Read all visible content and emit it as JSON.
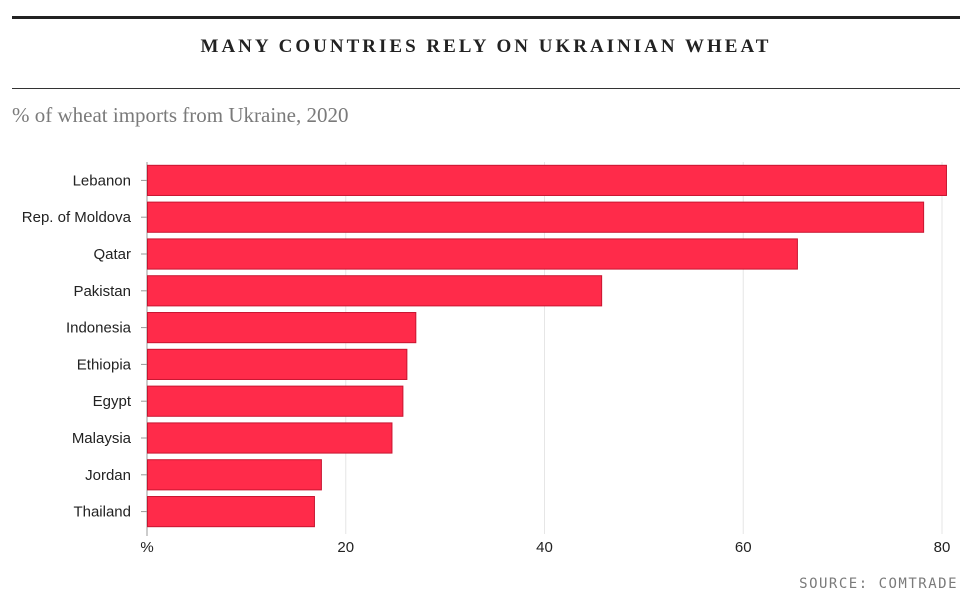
{
  "header": {
    "title": "MANY COUNTRIES RELY ON UKRAINIAN WHEAT",
    "subtitle": "% of wheat imports from Ukraine, 2020"
  },
  "footer": {
    "source": "SOURCE: COMTRADE"
  },
  "colors": {
    "bar": "#ff2b4a",
    "bar_edge": "#c81530",
    "grid": "#e6e6e6",
    "axis": "#999999"
  },
  "chart_data": {
    "type": "bar",
    "orientation": "horizontal",
    "title": "MANY COUNTRIES RELY ON UKRAINIAN WHEAT",
    "subtitle": "% of wheat imports from Ukraine, 2020",
    "categories": [
      "Lebanon",
      "Rep. of Moldova",
      "Qatar",
      "Pakistan",
      "Indonesia",
      "Ethiopia",
      "Egypt",
      "Malaysia",
      "Jordan",
      "Thailand"
    ],
    "values": [
      80.4,
      78.1,
      65.4,
      45.7,
      27.0,
      26.1,
      25.7,
      24.6,
      17.5,
      16.8
    ],
    "xlim": [
      0,
      80
    ],
    "xticks": [
      0,
      20,
      40,
      60,
      80
    ],
    "xtick_labels": [
      "%",
      "20",
      "40",
      "60",
      "80"
    ],
    "xlabel": "",
    "ylabel": "",
    "grid": true,
    "legend": "none"
  }
}
